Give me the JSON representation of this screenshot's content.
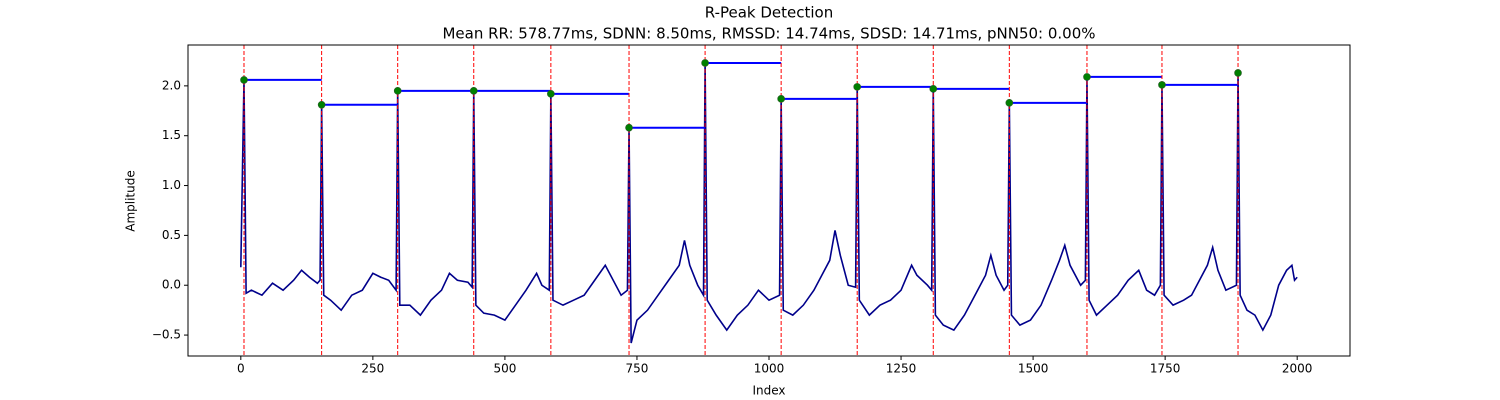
{
  "chart_data": {
    "type": "line",
    "title": "R-Peak Detection",
    "subtitle": "Mean RR: 578.77ms, SDNN: 8.50ms, RMSSD: 14.74ms, SDSD: 14.71ms, pNN50: 0.00%",
    "xlabel": "Index",
    "ylabel": "Amplitude",
    "xlim": [
      -100,
      2100
    ],
    "ylim": [
      -0.71,
      2.41
    ],
    "xticks": [
      0,
      250,
      500,
      750,
      1000,
      1250,
      1500,
      1750,
      2000
    ],
    "yticks": [
      {
        "value": -0.5,
        "label": "−0.5"
      },
      {
        "value": 0,
        "label": "0.0"
      },
      0.5,
      {
        "value": 1,
        "label": "1.0"
      },
      1.5,
      {
        "value": 2,
        "label": "2.0"
      }
    ],
    "signal": {
      "color": "#00008b",
      "x": [
        0,
        6,
        10,
        20,
        40,
        60,
        80,
        100,
        115,
        130,
        145,
        150,
        153,
        157,
        170,
        190,
        210,
        230,
        250,
        265,
        280,
        294,
        297,
        301,
        320,
        340,
        360,
        380,
        395,
        410,
        430,
        438,
        441,
        445,
        460,
        480,
        500,
        520,
        540,
        560,
        570,
        584,
        587,
        591,
        610,
        630,
        650,
        670,
        690,
        700,
        720,
        732,
        735,
        739,
        750,
        770,
        790,
        810,
        830,
        840,
        850,
        865,
        876,
        879,
        883,
        900,
        920,
        940,
        960,
        980,
        1000,
        1020,
        1023,
        1027,
        1045,
        1065,
        1085,
        1100,
        1115,
        1125,
        1135,
        1150,
        1164,
        1167,
        1171,
        1190,
        1210,
        1230,
        1250,
        1270,
        1280,
        1300,
        1308,
        1311,
        1315,
        1330,
        1350,
        1370,
        1390,
        1410,
        1420,
        1430,
        1445,
        1452,
        1455,
        1459,
        1475,
        1495,
        1515,
        1535,
        1550,
        1560,
        1570,
        1590,
        1599,
        1602,
        1606,
        1620,
        1640,
        1660,
        1680,
        1700,
        1715,
        1730,
        1741,
        1744,
        1748,
        1765,
        1785,
        1800,
        1815,
        1830,
        1840,
        1850,
        1865,
        1885,
        1888,
        1892,
        1905,
        1920,
        1935,
        1950,
        1965,
        1980,
        1990,
        1995,
        2000
      ],
      "values": [
        0.18,
        2.06,
        -0.08,
        -0.05,
        -0.1,
        0.02,
        -0.05,
        0.05,
        0.15,
        0.08,
        0.02,
        0.05,
        1.81,
        -0.1,
        -0.15,
        -0.25,
        -0.1,
        -0.05,
        0.12,
        0.08,
        0.05,
        -0.05,
        1.95,
        -0.2,
        -0.2,
        -0.3,
        -0.15,
        -0.05,
        0.12,
        0.05,
        0.03,
        -0.02,
        1.95,
        -0.2,
        -0.28,
        -0.3,
        -0.35,
        -0.2,
        -0.05,
        0.12,
        0.0,
        -0.05,
        1.92,
        -0.15,
        -0.2,
        -0.15,
        -0.1,
        0.05,
        0.2,
        0.1,
        -0.1,
        -0.05,
        1.58,
        -0.58,
        -0.35,
        -0.25,
        -0.1,
        0.05,
        0.2,
        0.45,
        0.2,
        0.0,
        -0.1,
        2.23,
        -0.15,
        -0.3,
        -0.45,
        -0.3,
        -0.2,
        -0.05,
        -0.15,
        -0.1,
        1.87,
        -0.25,
        -0.3,
        -0.2,
        -0.05,
        0.1,
        0.25,
        0.55,
        0.3,
        0.0,
        -0.02,
        1.99,
        -0.15,
        -0.3,
        -0.2,
        -0.15,
        -0.05,
        0.2,
        0.1,
        0.0,
        -0.05,
        1.97,
        -0.3,
        -0.4,
        -0.45,
        -0.3,
        -0.1,
        0.1,
        0.3,
        0.1,
        -0.05,
        0.0,
        1.83,
        -0.3,
        -0.4,
        -0.35,
        -0.2,
        0.05,
        0.25,
        0.4,
        0.2,
        0.0,
        0.05,
        2.09,
        -0.15,
        -0.3,
        -0.2,
        -0.1,
        0.05,
        0.15,
        -0.05,
        -0.1,
        0.0,
        2.01,
        -0.1,
        -0.2,
        -0.15,
        -0.1,
        0.05,
        0.2,
        0.38,
        0.15,
        -0.05,
        0.0,
        2.13,
        -0.1,
        -0.25,
        -0.3,
        -0.45,
        -0.3,
        0.0,
        0.15,
        0.2,
        0.05,
        0.08
      ]
    },
    "peaks": {
      "color": "#008000",
      "x": [
        6,
        153,
        297,
        441,
        587,
        735,
        879,
        1023,
        1167,
        1311,
        1455,
        1602,
        1744,
        1888
      ],
      "values": [
        2.06,
        1.81,
        1.95,
        1.95,
        1.92,
        1.58,
        2.23,
        1.87,
        1.99,
        1.97,
        1.83,
        2.09,
        2.01,
        2.13
      ]
    },
    "rr_line_color": "#0000ff",
    "peak_line_color": "#ff0000"
  }
}
